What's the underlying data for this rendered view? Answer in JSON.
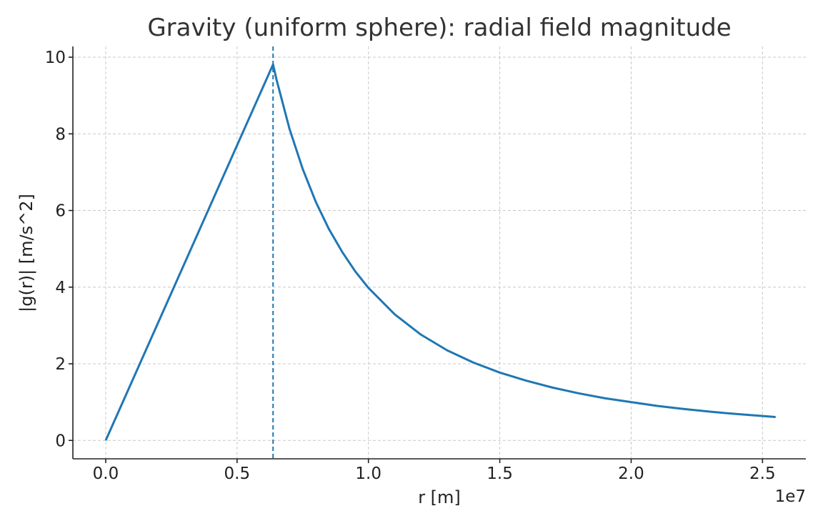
{
  "chart_data": {
    "type": "line",
    "title": "Gravity (uniform sphere): radial field magnitude",
    "xlabel": "r [m]",
    "ylabel": "|g(r)| [m/s^2]",
    "x_offset_label": "1e7",
    "xlim": [
      -0.125,
      2.665
    ],
    "ylim": [
      -0.48,
      10.28
    ],
    "x_ticks": [
      0.0,
      0.5,
      1.0,
      1.5,
      2.0,
      2.5
    ],
    "x_tick_labels": [
      "0.0",
      "0.5",
      "1.0",
      "1.5",
      "2.0",
      "2.5"
    ],
    "y_ticks": [
      0,
      2,
      4,
      6,
      8,
      10
    ],
    "y_tick_labels": [
      "0",
      "2",
      "4",
      "6",
      "8",
      "10"
    ],
    "grid": true,
    "series": [
      {
        "color": "#1f77b4",
        "x": [
          0.0,
          0.637,
          0.65,
          0.7,
          0.75,
          0.8,
          0.85,
          0.9,
          0.95,
          1.0,
          1.1,
          1.2,
          1.3,
          1.4,
          1.5,
          1.6,
          1.7,
          1.8,
          1.9,
          2.0,
          2.1,
          2.2,
          2.3,
          2.4,
          2.55
        ],
        "y": [
          0.0,
          9.81,
          9.42,
          8.12,
          7.08,
          6.22,
          5.51,
          4.92,
          4.41,
          3.98,
          3.29,
          2.76,
          2.35,
          2.03,
          1.77,
          1.56,
          1.38,
          1.23,
          1.1,
          1.0,
          0.9,
          0.82,
          0.75,
          0.69,
          0.61
        ]
      }
    ],
    "reference_lines": [
      {
        "orientation": "vertical",
        "x": 0.637,
        "style": "dashed",
        "color": "#1f77b4"
      }
    ]
  }
}
